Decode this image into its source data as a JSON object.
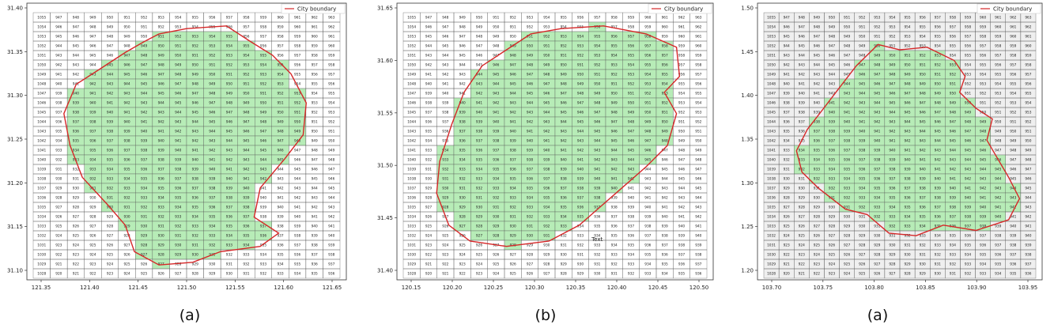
{
  "panels": [
    {
      "caption": "(a)",
      "legend": "City boundary",
      "x_ticks": [
        "121.35",
        "121.40",
        "121.45",
        "121.50",
        "121.55",
        "121.60",
        "121.65"
      ],
      "y_ticks": [
        "31.40",
        "31.35",
        "31.30",
        "31.25",
        "31.20",
        "31.15",
        "31.10"
      ],
      "cell_start": 1055,
      "extra_text": ""
    },
    {
      "caption": "(b)",
      "legend": "City boundary",
      "x_ticks": [
        "120.15",
        "120.20",
        "120.25",
        "120.30",
        "120.35",
        "120.40",
        "120.45",
        "120.50"
      ],
      "y_ticks": [
        "31.65",
        "31.60",
        "31.55",
        "31.50",
        "31.45",
        "31.40"
      ],
      "cell_start": 1055,
      "extra_text": "Text"
    },
    {
      "caption": "(a)",
      "legend": "City boundary",
      "x_ticks": [
        "103.70",
        "103.75",
        "103.80",
        "103.85",
        "103.90",
        "103.95"
      ],
      "y_ticks": [
        "1.50",
        "1.45",
        "1.40",
        "1.35",
        "1.30",
        "1.25",
        "1.20"
      ],
      "cell_start": 1055,
      "extra_text": ""
    }
  ],
  "colors": {
    "boundary": "#d62728",
    "inside": "#b7ecb7",
    "grid": "#555555",
    "frame_bg": "#ffffff",
    "panel3_bg": "#efefef"
  }
}
